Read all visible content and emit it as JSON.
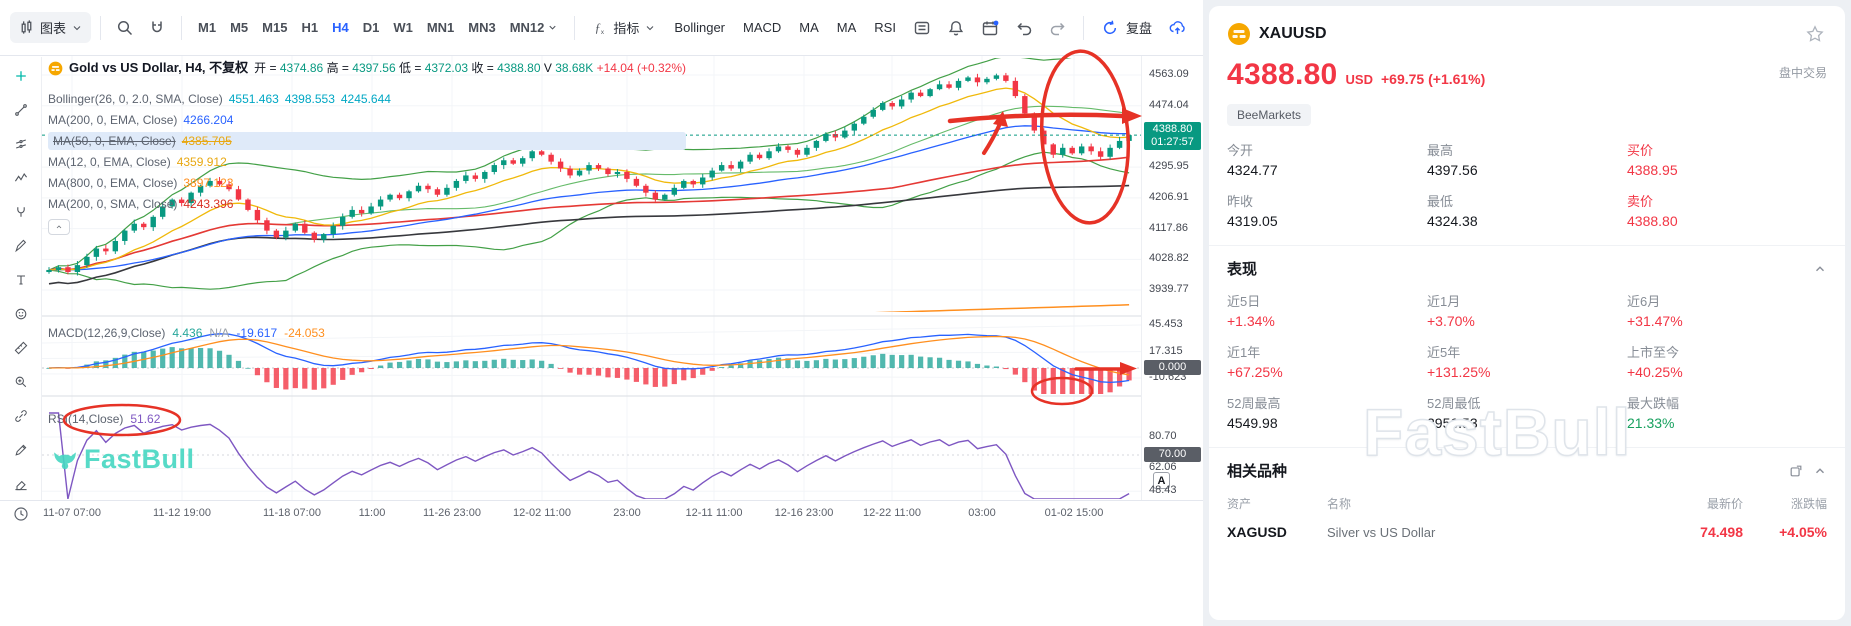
{
  "colors": {
    "up": "#089981",
    "down": "#f23645",
    "accent_blue": "#2962ff",
    "annotation_red": "#e63226",
    "watermark_teal": "#45d6c2"
  },
  "toolbar": {
    "chart_menu_label": "图表",
    "timeframes": [
      "M1",
      "M5",
      "M15",
      "H1",
      "H4",
      "D1",
      "W1",
      "MN1",
      "MN3",
      "MN12"
    ],
    "active_timeframe": "H4",
    "indicators_label": "指标",
    "indicator_shortcuts": [
      "Bollinger",
      "MACD",
      "MA",
      "MA",
      "RSI"
    ],
    "replay_label": "复盘"
  },
  "legend": {
    "symbol_name": "Gold vs US Dollar, H4, 不复权",
    "open_label": "开 =",
    "open": "4374.86",
    "high_label": "高 =",
    "high": "4397.56",
    "low_label": "低 =",
    "low": "4372.03",
    "close_label": "收 =",
    "close": "4388.80",
    "volume_label": "V",
    "volume": "38.68K",
    "change": "+14.04 (+0.32%)",
    "bollinger": {
      "name": "Bollinger(26, 0, 2.0, SMA, Close)",
      "v1": "4551.463",
      "v2": "4398.553",
      "v3": "4245.644"
    },
    "ma200e": {
      "name": "MA(200, 0, EMA, Close)",
      "v": "4266.204"
    },
    "ma50": {
      "name": "MA(50, 0, EMA, Close)",
      "v": "4385.705"
    },
    "ma12": {
      "name": "MA(12, 0, EMA, Close)",
      "v": "4359.912"
    },
    "ma800": {
      "name": "MA(800, 0, EMA, Close)",
      "v": "3897.123"
    },
    "ma200s": {
      "name": "MA(200, 0, SMA, Close)",
      "v": "4243.396"
    },
    "macd": {
      "name": "MACD(12,26,9,Close)",
      "v1": "4.436",
      "v2": "N/A",
      "v3": "-19.617",
      "v4": "-24.053"
    },
    "rsi": {
      "name": "RSI(14,Close)",
      "v": "51.62"
    }
  },
  "axes": {
    "price_ticks": [
      4563.09,
      4474.04,
      4295.95,
      4206.91,
      4117.86,
      4028.82,
      3939.77
    ],
    "current_price": "4388.80",
    "countdown": "01:27:57",
    "macd_ticks": [
      45.453,
      17.315,
      -10.623
    ],
    "macd_zero": "0.000",
    "rsi_ticks": [
      80.7,
      62.06,
      48.43
    ],
    "rsi_level": "70.00",
    "auto_label": "A",
    "time_labels": [
      "11-07 07:00",
      "11-12 19:00",
      "11-18 07:00",
      "11:00",
      "11-26 23:00",
      "12-02 11:00",
      "23:00",
      "12-11 11:00",
      "12-16 23:00",
      "12-22 11:00",
      "03:00",
      "01-02 15:00"
    ]
  },
  "watermarks": {
    "chart": "FastBull",
    "panel": "FastBull"
  },
  "quote": {
    "symbol": "XAUUSD",
    "price": "4388.80",
    "currency": "USD",
    "change": "+69.75 (+1.61%)",
    "session": "盘中交易",
    "broker": "BeeMarkets",
    "stats": [
      {
        "label": "今开",
        "value": "4324.77"
      },
      {
        "label": "最高",
        "value": "4397.56"
      },
      {
        "label": "买价",
        "value": "4388.95"
      },
      {
        "label": "昨收",
        "value": "4319.05"
      },
      {
        "label": "最低",
        "value": "4324.38"
      },
      {
        "label": "卖价",
        "value": "4388.80"
      }
    ]
  },
  "performance": {
    "title": "表现",
    "items": [
      {
        "label": "近5日",
        "value": "+1.34%"
      },
      {
        "label": "近1月",
        "value": "+3.70%"
      },
      {
        "label": "近6月",
        "value": "+31.47%"
      },
      {
        "label": "近1年",
        "value": "+67.25%"
      },
      {
        "label": "近5年",
        "value": "+131.25%"
      },
      {
        "label": "上市至今",
        "value": "+40.25%"
      },
      {
        "label": "52周最高",
        "value": "4549.98"
      },
      {
        "label": "52周最低",
        "value": "2956.53"
      },
      {
        "label": "最大跌幅",
        "value": "21.33%"
      }
    ]
  },
  "related": {
    "title": "相关品种",
    "headers": [
      "资产",
      "名称",
      "最新价",
      "涨跌幅"
    ],
    "rows": [
      {
        "symbol": "XAGUSD",
        "name": "Silver vs US Dollar",
        "price": "74.498",
        "change": "+4.05%"
      }
    ]
  },
  "chart_data": {
    "type": "candlestick",
    "symbol": "XAUUSD",
    "timeframe": "H4",
    "price_range": [
      3939.77,
      4563.09
    ],
    "indicators": [
      "Bollinger(26,2,SMA)",
      "MA(12,EMA)",
      "MA(50,EMA)",
      "MA(200,EMA)",
      "MA(200,SMA)",
      "MA(800,EMA)",
      "MACD(12,26,9)",
      "RSI(14)"
    ],
    "closes": [
      3998,
      4006,
      3992,
      4012,
      4036,
      4060,
      4052,
      4082,
      4112,
      4132,
      4122,
      4152,
      4182,
      4202,
      4192,
      4222,
      4242,
      4256,
      4246,
      4232,
      4202,
      4172,
      4142,
      4112,
      4092,
      4112,
      4132,
      4106,
      4086,
      4102,
      4126,
      4152,
      4172,
      4162,
      4182,
      4202,
      4216,
      4206,
      4226,
      4242,
      4232,
      4216,
      4236,
      4256,
      4272,
      4262,
      4282,
      4302,
      4316,
      4306,
      4322,
      4342,
      4332,
      4312,
      4292,
      4272,
      4286,
      4302,
      4292,
      4276,
      4282,
      4262,
      4242,
      4222,
      4202,
      4216,
      4236,
      4256,
      4246,
      4266,
      4286,
      4302,
      4292,
      4312,
      4332,
      4322,
      4342,
      4356,
      4346,
      4332,
      4352,
      4372,
      4392,
      4382,
      4402,
      4422,
      4442,
      4462,
      4482,
      4472,
      4492,
      4512,
      4502,
      4522,
      4536,
      4526,
      4546,
      4556,
      4542,
      4552,
      4562,
      4546,
      4502,
      4452,
      4402,
      4362,
      4332,
      4352,
      4336,
      4356,
      4342,
      4326,
      4352,
      4372,
      4388.8
    ]
  }
}
